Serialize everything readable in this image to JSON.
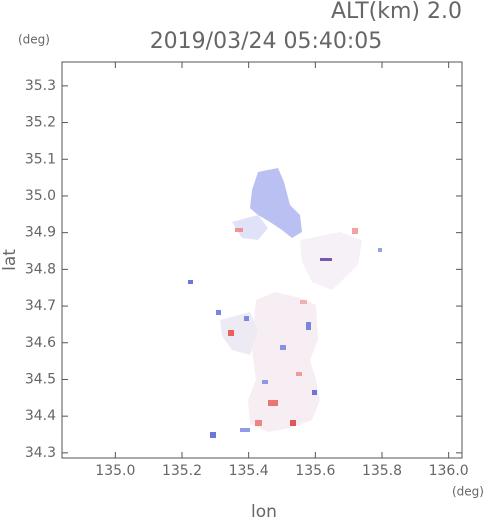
{
  "chart_data": {
    "type": "map",
    "title": "2019/03/24 05:40:05",
    "subtitle": "ALT(km) 2.0",
    "x_label": "lon",
    "y_label": "lat",
    "x_unit": "(deg)",
    "y_unit": "(deg)",
    "xlim": [
      134.84,
      136.04
    ],
    "ylim": [
      34.286,
      35.365
    ],
    "xticks": [
      {
        "value": 135,
        "label": "135.0"
      },
      135.2,
      135.4,
      135.6,
      135.8,
      {
        "value": 136,
        "label": "136.0"
      }
    ],
    "yticks": [
      34.3,
      34.4,
      34.5,
      34.6,
      34.7,
      34.8,
      34.9,
      {
        "value": 35,
        "label": "35.0"
      },
      35.1,
      35.2,
      35.3
    ]
  }
}
